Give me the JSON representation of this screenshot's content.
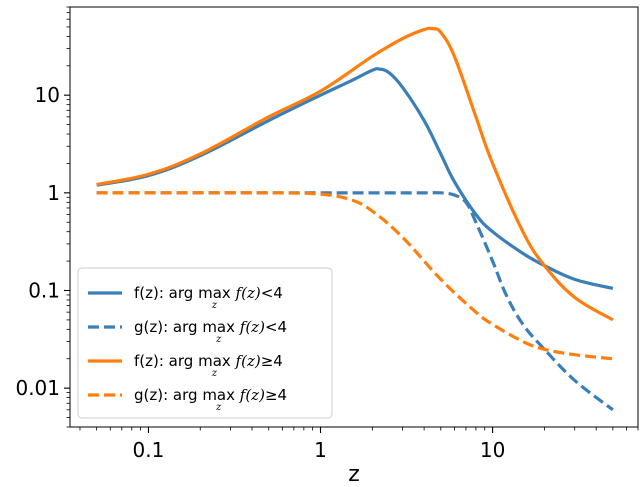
{
  "chart_data": {
    "type": "line",
    "xlabel": "z",
    "ylabel": "",
    "xscale": "log",
    "yscale": "log",
    "xlim": [
      0.035,
      70
    ],
    "ylim": [
      0.004,
      80
    ],
    "x_ticks": [
      {
        "value": 0.1,
        "label": "0.1"
      },
      {
        "value": 1,
        "label": "1"
      },
      {
        "value": 10,
        "label": "10"
      }
    ],
    "y_ticks": [
      {
        "value": 0.01,
        "label": "0.01"
      },
      {
        "value": 0.1,
        "label": "0.1"
      },
      {
        "value": 1,
        "label": "1"
      },
      {
        "value": 10,
        "label": "10"
      }
    ],
    "grid": false,
    "legend_position": "lower-left",
    "series": [
      {
        "name": "f(z): arg max f(z)<4",
        "legend": {
          "prefix": "f(z): arg",
          "op": "max",
          "sub": "z",
          "expr": "f(z)",
          "cond": "<4"
        },
        "color": "#3a7fba",
        "style": "solid",
        "x": [
          0.05,
          0.1,
          0.2,
          0.5,
          1,
          1.5,
          2,
          2.2,
          2.5,
          3,
          4,
          5,
          6,
          8,
          10,
          15,
          20,
          30,
          50
        ],
        "y": [
          1.2,
          1.5,
          2.4,
          5.5,
          10,
          14,
          18,
          18.5,
          17,
          12,
          5.5,
          2.5,
          1.3,
          0.6,
          0.4,
          0.24,
          0.18,
          0.13,
          0.105
        ]
      },
      {
        "name": "g(z): arg max f(z)<4",
        "legend": {
          "prefix": "g(z): arg",
          "op": "max",
          "sub": "z",
          "expr": "f(z)",
          "cond": "<4"
        },
        "color": "#3a7fba",
        "style": "dashed",
        "x": [
          0.05,
          0.1,
          0.5,
          1,
          2,
          4,
          5,
          6,
          7,
          8,
          10,
          12,
          15,
          20,
          30,
          50
        ],
        "y": [
          1,
          1,
          1,
          1,
          1,
          1,
          1,
          0.95,
          0.8,
          0.5,
          0.2,
          0.09,
          0.045,
          0.025,
          0.012,
          0.006
        ]
      },
      {
        "name": "f(z): arg max f(z)≥4",
        "legend": {
          "prefix": "f(z): arg",
          "op": "max",
          "sub": "z",
          "expr": "f(z)",
          "cond": "≥4"
        },
        "color": "#ff7f0e",
        "style": "solid",
        "x": [
          0.05,
          0.1,
          0.2,
          0.5,
          1,
          2,
          3,
          4,
          4.5,
          5,
          6,
          8,
          10,
          15,
          20,
          30,
          50
        ],
        "y": [
          1.22,
          1.55,
          2.5,
          6,
          11,
          25,
          38,
          47,
          48,
          44,
          25,
          6,
          2,
          0.4,
          0.18,
          0.085,
          0.05
        ]
      },
      {
        "name": "g(z): arg max f(z)≥4",
        "legend": {
          "prefix": "g(z): arg",
          "op": "max",
          "sub": "z",
          "expr": "f(z)",
          "cond": "≥4"
        },
        "color": "#ff7f0e",
        "style": "dashed",
        "x": [
          0.05,
          0.1,
          0.5,
          1,
          1.5,
          2,
          3,
          5,
          8,
          10,
          15,
          20,
          30,
          50
        ],
        "y": [
          1,
          1,
          1,
          0.97,
          0.85,
          0.65,
          0.35,
          0.13,
          0.06,
          0.045,
          0.03,
          0.025,
          0.022,
          0.02
        ]
      }
    ]
  }
}
